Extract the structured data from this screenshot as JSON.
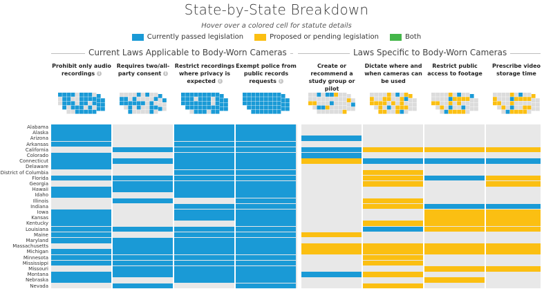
{
  "title": "State-by-State Breakdown",
  "subtitle": "Hover over a colored cell for statute details",
  "colors": {
    "passed": "#1a9ad6",
    "pending": "#fbbf12",
    "both": "#44b649",
    "empty": "#e8e8e8",
    "map_none": "#dcdcdc"
  },
  "legend": [
    {
      "label": "Currently passed legislation",
      "key": "passed"
    },
    {
      "label": "Proposed or pending legislation",
      "key": "pending"
    },
    {
      "label": "Both",
      "key": "both"
    }
  ],
  "groups": [
    {
      "label": "Current Laws Applicable to Body-Worn Cameras"
    },
    {
      "label": "Laws Specific to Body-Worn Cameras"
    }
  ],
  "chart_data": {
    "type": "heatmap",
    "title": "State-by-State Breakdown",
    "columns": [
      {
        "label": "Prohibit only audio recordings",
        "info": true,
        "group": 0
      },
      {
        "label": "Requires two/all-party consent",
        "info": true,
        "group": 0
      },
      {
        "label": "Restrict recordings where privacy is expected",
        "info": true,
        "group": 0
      },
      {
        "label": "Exempt police from public records requests",
        "info": true,
        "group": 0
      },
      {
        "label": "Create or recommend a study group or pilot",
        "info": false,
        "group": 1
      },
      {
        "label": "Dictate where and when cameras can be used",
        "info": false,
        "group": 1
      },
      {
        "label": "Restrict public access to footage",
        "info": false,
        "group": 1
      },
      {
        "label": "Prescribe video storage time",
        "info": false,
        "group": 1
      }
    ],
    "states": [
      "Alabama",
      "Alaska",
      "Arizona",
      "Arkansas",
      "California",
      "Colorado",
      "Connecticut",
      "Delaware",
      "District of Columbia",
      "Florida",
      "Georgia",
      "Hawaii",
      "Idaho",
      "Illinois",
      "Indiana",
      "Iowa",
      "Kansas",
      "Kentucky",
      "Louisiana",
      "Maine",
      "Maryland",
      "Massachusetts",
      "Michigan",
      "Minnesota",
      "Mississippi",
      "Missouri",
      "Montana",
      "Nebraska",
      "Nevada"
    ],
    "value_key": {
      "0": "none",
      "1": "passed",
      "2": "pending",
      "3": "both"
    },
    "values": [
      [
        1,
        0,
        1,
        1,
        0,
        0,
        0,
        0
      ],
      [
        1,
        0,
        1,
        1,
        0,
        0,
        0,
        0
      ],
      [
        1,
        0,
        1,
        1,
        1,
        0,
        0,
        0
      ],
      [
        1,
        0,
        1,
        1,
        0,
        0,
        0,
        0
      ],
      [
        0,
        1,
        1,
        1,
        1,
        2,
        2,
        2
      ],
      [
        1,
        0,
        1,
        1,
        1,
        0,
        0,
        0
      ],
      [
        1,
        1,
        1,
        1,
        2,
        1,
        1,
        1
      ],
      [
        1,
        0,
        1,
        1,
        0,
        0,
        0,
        0
      ],
      [
        0,
        0,
        1,
        1,
        0,
        2,
        0,
        0
      ],
      [
        1,
        1,
        1,
        1,
        0,
        2,
        1,
        2
      ],
      [
        0,
        1,
        1,
        1,
        0,
        2,
        0,
        2
      ],
      [
        1,
        1,
        1,
        1,
        0,
        0,
        0,
        0
      ],
      [
        1,
        0,
        1,
        1,
        0,
        0,
        0,
        0
      ],
      [
        0,
        1,
        0,
        1,
        0,
        2,
        0,
        0
      ],
      [
        0,
        0,
        1,
        1,
        0,
        2,
        1,
        1
      ],
      [
        1,
        0,
        1,
        1,
        0,
        0,
        2,
        2
      ],
      [
        1,
        0,
        1,
        1,
        0,
        0,
        2,
        2
      ],
      [
        1,
        0,
        0,
        1,
        0,
        2,
        2,
        2
      ],
      [
        1,
        1,
        1,
        1,
        0,
        1,
        2,
        2
      ],
      [
        1,
        0,
        1,
        1,
        2,
        0,
        0,
        0
      ],
      [
        1,
        1,
        1,
        1,
        0,
        0,
        0,
        0
      ],
      [
        0,
        1,
        1,
        1,
        2,
        2,
        2,
        2
      ],
      [
        1,
        1,
        1,
        1,
        2,
        2,
        2,
        2
      ],
      [
        1,
        1,
        1,
        1,
        0,
        2,
        0,
        0
      ],
      [
        1,
        1,
        1,
        1,
        0,
        2,
        0,
        0
      ],
      [
        0,
        1,
        1,
        1,
        0,
        0,
        2,
        2
      ],
      [
        1,
        1,
        1,
        1,
        1,
        2,
        0,
        0
      ],
      [
        1,
        0,
        1,
        1,
        0,
        0,
        2,
        0
      ],
      [
        0,
        1,
        0,
        1,
        0,
        2,
        0,
        0
      ]
    ],
    "xlabel": "",
    "ylabel": ""
  }
}
